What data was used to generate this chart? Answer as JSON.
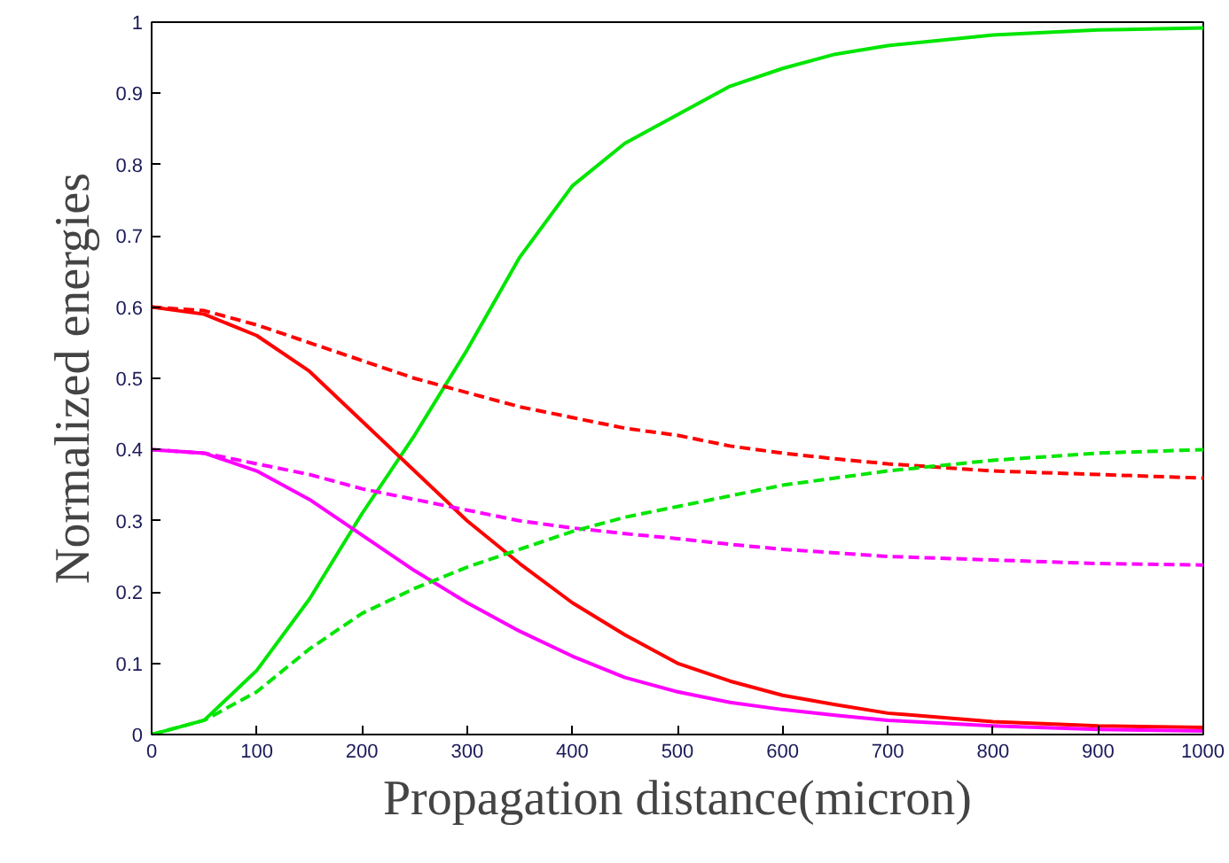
{
  "chart_data": {
    "type": "line",
    "xlabel": "Propagation distance(micron)",
    "ylabel": "Normalized energies",
    "xlim": [
      0,
      1000
    ],
    "ylim": [
      0,
      1
    ],
    "xticks": [
      0,
      100,
      200,
      300,
      400,
      500,
      600,
      700,
      800,
      900,
      1000
    ],
    "yticks": [
      0,
      0.1,
      0.2,
      0.3,
      0.4,
      0.5,
      0.6,
      0.7,
      0.8,
      0.9,
      1
    ],
    "x": [
      0,
      50,
      100,
      150,
      200,
      250,
      300,
      350,
      400,
      450,
      500,
      550,
      600,
      650,
      700,
      800,
      900,
      1000
    ],
    "series": [
      {
        "color": "#00e600",
        "line_style": "solid",
        "values": [
          0,
          0.02,
          0.09,
          0.19,
          0.31,
          0.42,
          0.54,
          0.67,
          0.77,
          0.83,
          0.87,
          0.91,
          0.935,
          0.955,
          0.967,
          0.982,
          0.989,
          0.992
        ]
      },
      {
        "color": "#ff0000",
        "line_style": "solid",
        "values": [
          0.6,
          0.59,
          0.56,
          0.51,
          0.44,
          0.37,
          0.3,
          0.24,
          0.185,
          0.14,
          0.1,
          0.075,
          0.055,
          0.042,
          0.03,
          0.018,
          0.012,
          0.01
        ]
      },
      {
        "color": "#ff00ff",
        "line_style": "solid",
        "values": [
          0.4,
          0.395,
          0.37,
          0.33,
          0.28,
          0.23,
          0.185,
          0.145,
          0.11,
          0.08,
          0.06,
          0.045,
          0.035,
          0.027,
          0.02,
          0.012,
          0.007,
          0.005
        ]
      },
      {
        "color": "#ff0000",
        "line_style": "dashed",
        "values": [
          0.6,
          0.595,
          0.575,
          0.55,
          0.525,
          0.5,
          0.48,
          0.46,
          0.445,
          0.43,
          0.42,
          0.405,
          0.395,
          0.387,
          0.38,
          0.37,
          0.365,
          0.36
        ]
      },
      {
        "color": "#ff00ff",
        "line_style": "dashed",
        "values": [
          0.4,
          0.395,
          0.38,
          0.365,
          0.345,
          0.33,
          0.315,
          0.3,
          0.29,
          0.282,
          0.275,
          0.267,
          0.26,
          0.255,
          0.25,
          0.245,
          0.24,
          0.238
        ]
      },
      {
        "color": "#00e600",
        "line_style": "dashed",
        "values": [
          0,
          0.02,
          0.06,
          0.12,
          0.17,
          0.205,
          0.235,
          0.26,
          0.285,
          0.305,
          0.32,
          0.335,
          0.35,
          0.36,
          0.37,
          0.385,
          0.395,
          0.4
        ]
      }
    ]
  }
}
